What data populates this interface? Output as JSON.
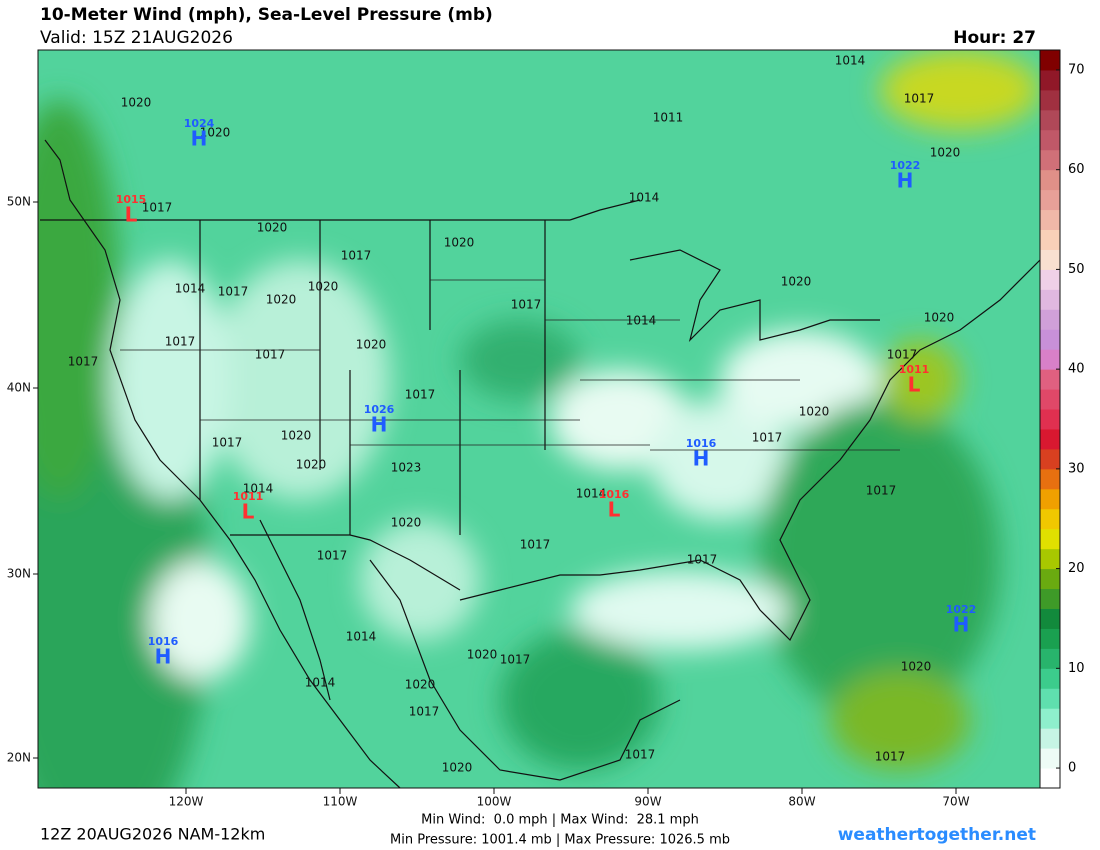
{
  "header": {
    "title": "10-Meter Wind (mph), Sea-Level Pressure (mb)",
    "valid": "Valid: 15Z 21AUG2026",
    "hour": "Hour: 27"
  },
  "lat_labels": [
    "50N",
    "40N",
    "30N",
    "20N"
  ],
  "lon_labels": [
    "120W",
    "110W",
    "100W",
    "90W",
    "80W",
    "70W"
  ],
  "centers": [
    {
      "type": "H",
      "pressure": "1024"
    },
    {
      "type": "L",
      "pressure": "1015"
    },
    {
      "type": "H",
      "pressure": "1022"
    },
    {
      "type": "L",
      "pressure": "1011"
    },
    {
      "type": "H",
      "pressure": "1026"
    },
    {
      "type": "H",
      "pressure": "1016"
    },
    {
      "type": "L",
      "pressure": "1011"
    },
    {
      "type": "L",
      "pressure": "1016"
    },
    {
      "type": "H",
      "pressure": "1022"
    },
    {
      "type": "H",
      "pressure": "1016"
    }
  ],
  "isobar_labels": [
    "1020",
    "1020",
    "1017",
    "1020",
    "1014",
    "1017",
    "1020",
    "1020",
    "1017",
    "1020",
    "1017",
    "1017",
    "1020",
    "1017",
    "1017",
    "1020",
    "1017",
    "1020",
    "1023",
    "1014",
    "1020",
    "1017",
    "1017",
    "1014",
    "1017",
    "1017",
    "1020",
    "1017",
    "1017",
    "1020",
    "1020",
    "1014",
    "1017",
    "1014",
    "1011",
    "1014",
    "1017",
    "1020",
    "1014",
    "1020",
    "1014",
    "1020",
    "1017",
    "1020",
    "1017",
    "1017",
    "1020",
    "1017"
  ],
  "colorbar": {
    "lim": [
      -2,
      72
    ],
    "ticks": [
      0,
      10,
      20,
      30,
      40,
      50,
      60,
      70
    ],
    "colors": [
      "#ffffff",
      "#eefcf6",
      "#c6f5e4",
      "#8eefcc",
      "#5fdfae",
      "#3ccc8c",
      "#28b46c",
      "#1aa050",
      "#128a3c",
      "#3e9a28",
      "#6aaa10",
      "#a8c800",
      "#e0e000",
      "#f0c800",
      "#f0a000",
      "#e87010",
      "#d84020",
      "#d81830",
      "#e03050",
      "#e04868",
      "#e06080",
      "#d880c8",
      "#c890d8",
      "#d0a0d8",
      "#e0b8e0",
      "#f0d0e8",
      "#f8e0d0",
      "#f8d0b8",
      "#f0b8a8",
      "#e8a098",
      "#e09088",
      "#d07078",
      "#c05868",
      "#b04858",
      "#a03040",
      "#901828",
      "#800000"
    ]
  },
  "footer": {
    "run": "12Z 20AUG2026 NAM-12km",
    "wind": "Min Wind:  0.0 mph | Max Wind:  28.1 mph",
    "pressure": "Min Pressure: 1001.4 mb | Max Pressure: 1026.5 mb",
    "site": "weathertogether.net"
  }
}
